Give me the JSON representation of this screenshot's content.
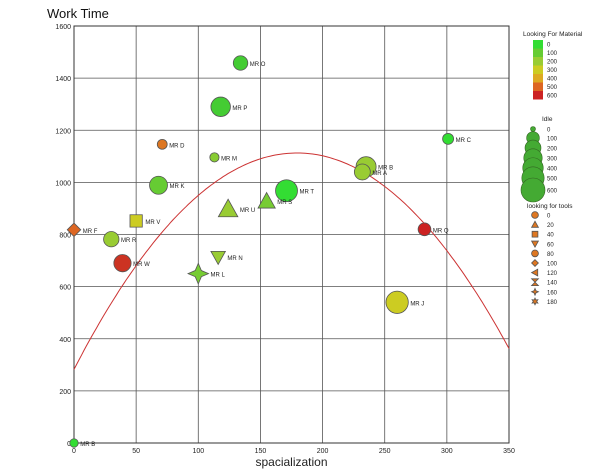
{
  "chart_data": {
    "type": "scatter",
    "title": "Work Time",
    "xlabel": "spacialization",
    "ylabel": "",
    "xlim": [
      0,
      350
    ],
    "ylim": [
      0,
      1600
    ],
    "x_ticks": [
      "0",
      "50",
      "100",
      "150",
      "200",
      "250",
      "300",
      "350"
    ],
    "y_ticks": [
      "0",
      "200",
      "400",
      "600",
      "800",
      "1000",
      "1200",
      "1400",
      "1600"
    ],
    "grid": true,
    "fit_curve": {
      "type": "quadratic",
      "color": "#cc3333",
      "points": [
        [
          0,
          275
        ],
        [
          100,
          960
        ],
        [
          180,
          1130
        ],
        [
          250,
          970
        ],
        [
          300,
          710
        ],
        [
          350,
          385
        ]
      ]
    },
    "points": [
      {
        "label": "MR O",
        "x": 134,
        "y": 1458,
        "material": 80,
        "idle": 150,
        "tools": 0,
        "shape": "circle",
        "color": "#44cc33"
      },
      {
        "label": "MR P",
        "x": 118,
        "y": 1290,
        "material": 60,
        "idle": 350,
        "tools": 0,
        "shape": "circle",
        "color": "#44cc33"
      },
      {
        "label": "MR C",
        "x": 301,
        "y": 1167,
        "material": 40,
        "idle": 60,
        "tools": 0,
        "shape": "circle",
        "color": "#33dd33"
      },
      {
        "label": "MR D",
        "x": 71,
        "y": 1146,
        "material": 450,
        "idle": 40,
        "tools": 0,
        "shape": "circle",
        "color": "#dd7722"
      },
      {
        "label": "MR M",
        "x": 113,
        "y": 1096,
        "material": 180,
        "idle": 30,
        "tools": 0,
        "shape": "circle",
        "color": "#88cc33"
      },
      {
        "label": "MR B",
        "x": 235,
        "y": 1060,
        "material": 230,
        "idle": 380,
        "tools": 0,
        "shape": "circle",
        "color": "#99cc33"
      },
      {
        "label": "MR A",
        "x": 232,
        "y": 1040,
        "material": 220,
        "idle": 200,
        "tools": 0,
        "shape": "circle",
        "color": "#99cc33"
      },
      {
        "label": "MR K",
        "x": 68,
        "y": 989,
        "material": 100,
        "idle": 280,
        "tools": 0,
        "shape": "circle",
        "color": "#66cc33"
      },
      {
        "label": "MR T",
        "x": 171,
        "y": 968,
        "material": 20,
        "idle": 480,
        "tools": 0,
        "shape": "circle",
        "color": "#33dd33"
      },
      {
        "label": "MR S",
        "x": 155,
        "y": 928,
        "material": 120,
        "idle": 250,
        "tools": 20,
        "shape": "triangle",
        "color": "#77cc33"
      },
      {
        "label": "MR U",
        "x": 124,
        "y": 898,
        "material": 200,
        "idle": 350,
        "tools": 20,
        "shape": "triangle",
        "color": "#99cc33"
      },
      {
        "label": "MR V",
        "x": 50,
        "y": 852,
        "material": 320,
        "idle": 150,
        "tools": 40,
        "shape": "square",
        "color": "#cccc22"
      },
      {
        "label": "MR F",
        "x": 0,
        "y": 818,
        "material": 480,
        "idle": 120,
        "tools": 100,
        "shape": "diamond",
        "color": "#dd6622"
      },
      {
        "label": "MR Q",
        "x": 282,
        "y": 820,
        "material": 600,
        "idle": 100,
        "tools": 0,
        "shape": "circle",
        "color": "#cc2222"
      },
      {
        "label": "MR R",
        "x": 30,
        "y": 782,
        "material": 200,
        "idle": 180,
        "tools": 0,
        "shape": "circle",
        "color": "#99cc33"
      },
      {
        "label": "MR N",
        "x": 116,
        "y": 713,
        "material": 200,
        "idle": 150,
        "tools": 60,
        "shape": "triangle-down",
        "color": "#99cc33"
      },
      {
        "label": "MR W",
        "x": 39,
        "y": 690,
        "material": 580,
        "idle": 250,
        "tools": 0,
        "shape": "circle",
        "color": "#cc3322"
      },
      {
        "label": "MR L",
        "x": 100,
        "y": 650,
        "material": 140,
        "idle": 400,
        "tools": 160,
        "shape": "star4",
        "color": "#77cc33"
      },
      {
        "label": "MR J",
        "x": 260,
        "y": 540,
        "material": 310,
        "idle": 500,
        "tools": 0,
        "shape": "circle",
        "color": "#cccc22"
      },
      {
        "label": "MR B",
        "x": 0,
        "y": 0,
        "material": 40,
        "idle": 20,
        "tools": 0,
        "shape": "circle",
        "color": "#33dd33"
      }
    ],
    "legends": {
      "material": {
        "title": "Looking For Material",
        "labels": [
          "0",
          "100",
          "200",
          "300",
          "400",
          "500",
          "600"
        ],
        "colors": [
          "#33dd33",
          "#66cc33",
          "#99cc33",
          "#cccc22",
          "#ddaa22",
          "#dd6622",
          "#cc2222"
        ]
      },
      "idle": {
        "title": "Idle",
        "labels": [
          "0",
          "100",
          "200",
          "300",
          "400",
          "500",
          "600"
        ]
      },
      "tools": {
        "title": "looking for tools",
        "labels": [
          "0",
          "20",
          "40",
          "60",
          "80",
          "100",
          "120",
          "140",
          "160",
          "180"
        ],
        "shapes": [
          "circle",
          "triangle",
          "square",
          "triangle-down",
          "circle",
          "diamond",
          "triangle-left",
          "hourglass",
          "star4",
          "star6"
        ],
        "color": "#dd7722"
      }
    }
  }
}
